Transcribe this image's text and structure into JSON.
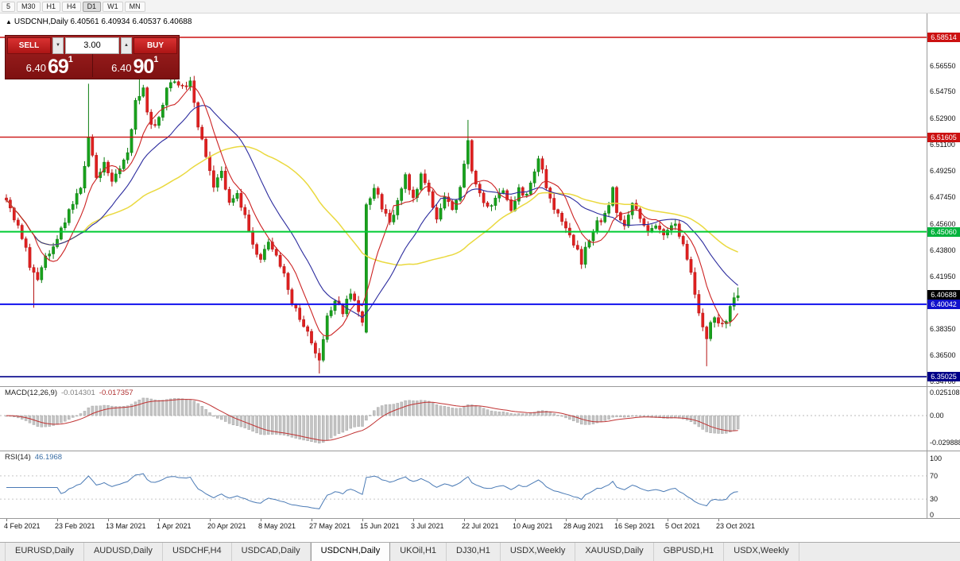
{
  "toolbar": {
    "timeframes": [
      "5",
      "M30",
      "H1",
      "H4",
      "D1",
      "W1",
      "MN"
    ],
    "active": "D1"
  },
  "header": {
    "marker": "▲",
    "title": "USDCNH,Daily",
    "ohlc": "6.40561 6.40934 6.40537 6.40688"
  },
  "trade_panel": {
    "sell_label": "SELL",
    "buy_label": "BUY",
    "volume": "3.00",
    "spin_down": "▼",
    "spin_up": "▲",
    "sell_price_prefix": "6.40",
    "sell_price_big": "69",
    "sell_price_sup": "1",
    "buy_price_prefix": "6.40",
    "buy_price_big": "90",
    "buy_price_sup": "1"
  },
  "chart_data": {
    "type": "candlestick",
    "symbol": "USDCNH",
    "timeframe": "Daily",
    "ohlc_display": {
      "open": "6.40561",
      "high": "6.40934",
      "low": "6.40537",
      "close": "6.40688"
    },
    "y_ticks": [
      "6.56550",
      "6.54750",
      "6.52900",
      "6.51100",
      "6.49250",
      "6.47450",
      "6.45600",
      "6.43800",
      "6.41950",
      "6.38350",
      "6.36500",
      "6.34700"
    ],
    "current_price": {
      "value": "6.40688",
      "chip": "#000000"
    },
    "levels": [
      {
        "price": 6.58514,
        "label": "6.58514",
        "chip": "#cc1111",
        "line": "#cc1111",
        "width": 1.4
      },
      {
        "price": 6.51605,
        "label": "6.51605",
        "chip": "#cc1111",
        "line": "#cc1111",
        "width": 1.4
      },
      {
        "price": 6.4506,
        "label": "6.45060",
        "chip": "#00b33c",
        "line": "#00cc33",
        "width": 2
      },
      {
        "price": 6.40042,
        "label": "6.40042",
        "chip": "#1111cc",
        "line": "#1111ee",
        "width": 2
      },
      {
        "price": 6.35025,
        "label": "6.35025",
        "chip": "#000088",
        "line": "#000088",
        "width": 1.6
      }
    ],
    "price_path": [
      [
        0,
        6.47
      ],
      [
        2,
        6.46
      ],
      [
        4,
        6.448
      ],
      [
        6,
        6.428
      ],
      [
        8,
        6.417
      ],
      [
        10,
        6.433
      ],
      [
        13,
        6.447
      ],
      [
        16,
        6.464
      ],
      [
        19,
        6.48
      ],
      [
        21,
        6.515
      ],
      [
        23,
        6.49
      ],
      [
        25,
        6.498
      ],
      [
        27,
        6.487
      ],
      [
        29,
        6.493
      ],
      [
        31,
        6.506
      ],
      [
        33,
        6.54
      ],
      [
        35,
        6.548
      ],
      [
        37,
        6.523
      ],
      [
        39,
        6.53
      ],
      [
        41,
        6.548
      ],
      [
        43,
        6.556
      ],
      [
        45,
        6.55
      ],
      [
        47,
        6.553
      ],
      [
        49,
        6.525
      ],
      [
        51,
        6.502
      ],
      [
        53,
        6.48
      ],
      [
        55,
        6.492
      ],
      [
        57,
        6.47
      ],
      [
        59,
        6.479
      ],
      [
        61,
        6.46
      ],
      [
        63,
        6.442
      ],
      [
        65,
        6.43
      ],
      [
        67,
        6.443
      ],
      [
        69,
        6.433
      ],
      [
        71,
        6.42
      ],
      [
        73,
        6.402
      ],
      [
        75,
        6.392
      ],
      [
        77,
        6.38
      ],
      [
        79,
        6.364
      ],
      [
        80,
        6.36
      ],
      [
        82,
        6.39
      ],
      [
        84,
        6.404
      ],
      [
        86,
        6.396
      ],
      [
        88,
        6.41
      ],
      [
        90,
        6.395
      ],
      [
        91,
        6.387
      ],
      [
        92,
        6.468
      ],
      [
        94,
        6.48
      ],
      [
        96,
        6.468
      ],
      [
        98,
        6.458
      ],
      [
        100,
        6.47
      ],
      [
        102,
        6.488
      ],
      [
        104,
        6.472
      ],
      [
        106,
        6.49
      ],
      [
        108,
        6.476
      ],
      [
        110,
        6.461
      ],
      [
        112,
        6.475
      ],
      [
        114,
        6.466
      ],
      [
        116,
        6.48
      ],
      [
        118,
        6.515
      ],
      [
        119,
        6.495
      ],
      [
        121,
        6.476
      ],
      [
        123,
        6.466
      ],
      [
        125,
        6.472
      ],
      [
        127,
        6.48
      ],
      [
        129,
        6.466
      ],
      [
        131,
        6.48
      ],
      [
        133,
        6.476
      ],
      [
        135,
        6.49
      ],
      [
        136,
        6.503
      ],
      [
        138,
        6.482
      ],
      [
        140,
        6.466
      ],
      [
        143,
        6.455
      ],
      [
        145,
        6.442
      ],
      [
        147,
        6.43
      ],
      [
        149,
        6.446
      ],
      [
        151,
        6.456
      ],
      [
        153,
        6.462
      ],
      [
        155,
        6.479
      ],
      [
        156,
        6.466
      ],
      [
        158,
        6.456
      ],
      [
        160,
        6.47
      ],
      [
        162,
        6.46
      ],
      [
        164,
        6.451
      ],
      [
        166,
        6.456
      ],
      [
        168,
        6.446
      ],
      [
        169,
        6.451
      ],
      [
        171,
        6.455
      ],
      [
        173,
        6.441
      ],
      [
        175,
        6.423
      ],
      [
        177,
        6.393
      ],
      [
        179,
        6.376
      ],
      [
        180,
        6.386
      ],
      [
        181,
        6.391
      ],
      [
        182,
        6.386
      ],
      [
        184,
        6.39
      ],
      [
        185,
        6.4
      ],
      [
        187,
        6.4069
      ]
    ],
    "spikes": [
      {
        "i": 7,
        "low": 6.398
      },
      {
        "i": 21,
        "high": 6.553
      },
      {
        "i": 34,
        "high": 6.56
      },
      {
        "i": 43,
        "high": 6.5655
      },
      {
        "i": 80,
        "low": 6.3525
      },
      {
        "i": 92,
        "open": 6.381
      },
      {
        "i": 118,
        "high": 6.528
      },
      {
        "i": 179,
        "low": 6.3575
      },
      {
        "i": 187,
        "high": 6.412
      }
    ],
    "x_dates": [
      {
        "label": "4 Feb 2021",
        "i": 0
      },
      {
        "label": "23 Feb 2021",
        "i": 13
      },
      {
        "label": "13 Mar 2021",
        "i": 26
      },
      {
        "label": "1 Apr 2021",
        "i": 39
      },
      {
        "label": "20 Apr 2021",
        "i": 52
      },
      {
        "label": "8 May 2021",
        "i": 65
      },
      {
        "label": "27 May 2021",
        "i": 78
      },
      {
        "label": "15 Jun 2021",
        "i": 91
      },
      {
        "label": "3 Jul 2021",
        "i": 104
      },
      {
        "label": "22 Jul 2021",
        "i": 117
      },
      {
        "label": "10 Aug 2021",
        "i": 130
      },
      {
        "label": "28 Aug 2021",
        "i": 143
      },
      {
        "label": "16 Sep 2021",
        "i": 156
      },
      {
        "label": "5 Oct 2021",
        "i": 169
      },
      {
        "label": "23 Oct 2021",
        "i": 182
      }
    ],
    "macd": {
      "label": "MACD(12,26,9)",
      "value_main": "-0.014301",
      "value_signal": "-0.017357",
      "ticks": [
        "0.025108",
        "0.00",
        "-0.029888"
      ]
    },
    "rsi": {
      "label": "RSI(14)",
      "value": "46.1968",
      "ticks": [
        "100",
        "70",
        "30",
        "0"
      ],
      "levels": [
        70,
        30
      ]
    }
  },
  "tabs": [
    {
      "label": "EURUSD,Daily",
      "active": false
    },
    {
      "label": "AUDUSD,Daily",
      "active": false
    },
    {
      "label": "USDCHF,H4",
      "active": false
    },
    {
      "label": "USDCAD,Daily",
      "active": false
    },
    {
      "label": "USDCNH,Daily",
      "active": true
    },
    {
      "label": "UKOil,H1",
      "active": false
    },
    {
      "label": "DJ30,H1",
      "active": false
    },
    {
      "label": "USDX,Weekly",
      "active": false
    },
    {
      "label": "XAUUSD,Daily",
      "active": false
    },
    {
      "label": "GBPUSD,H1",
      "active": false
    },
    {
      "label": "USDX,Weekly",
      "active": false
    }
  ]
}
